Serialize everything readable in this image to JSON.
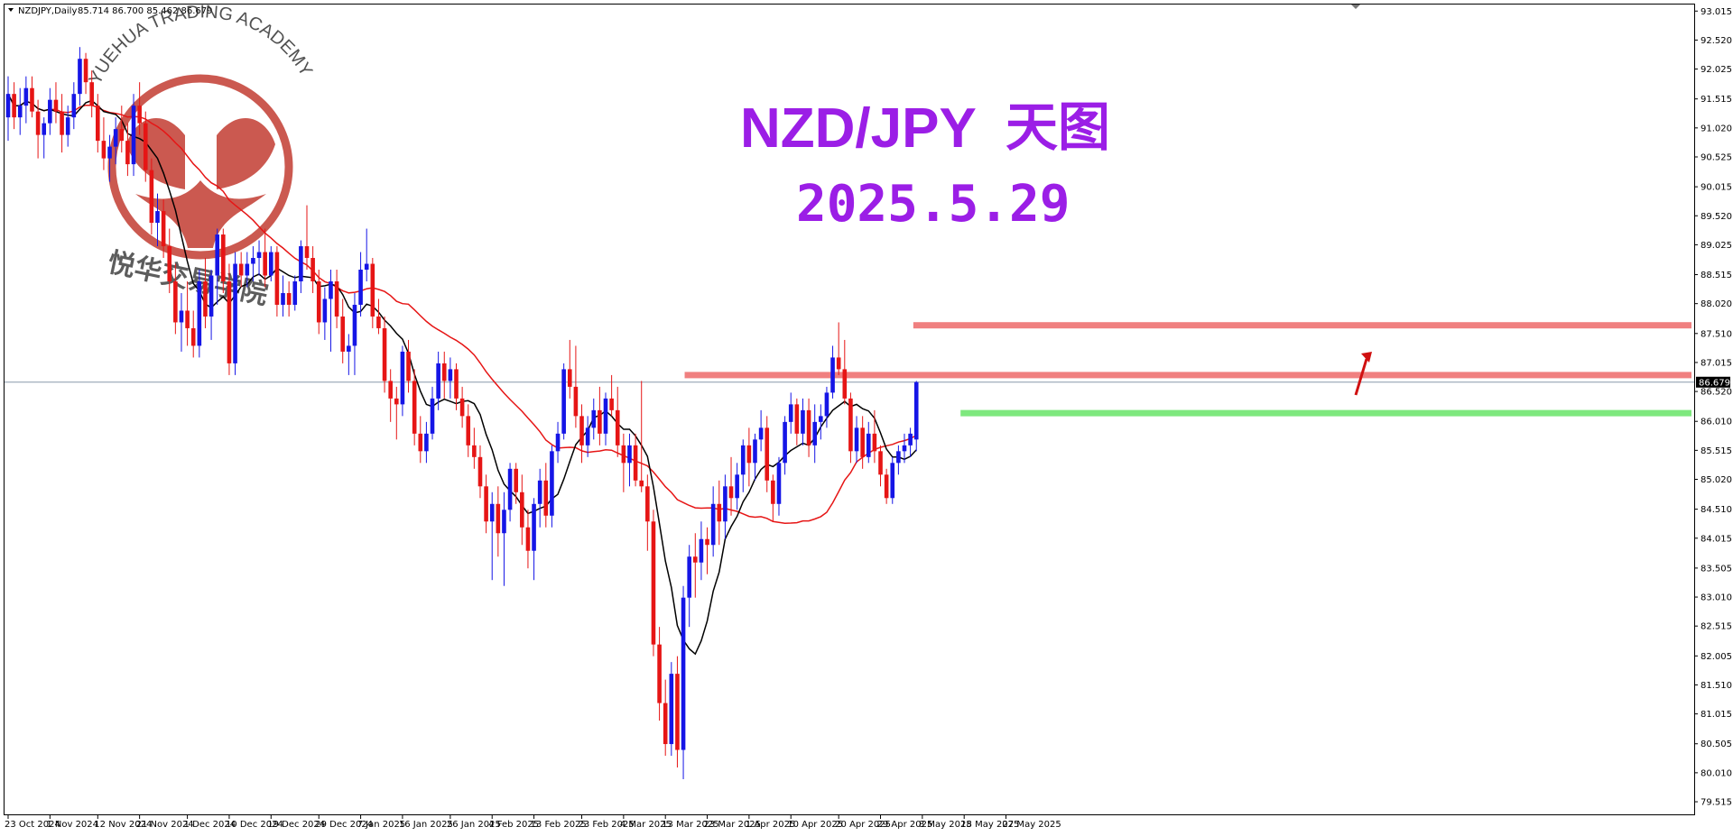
{
  "header": {
    "symbol_label": "NZDJPY,Daily",
    "ohlc_label": "85.714 86.700 85.462 86.679"
  },
  "title": {
    "line1": "NZD/JPY",
    "line1_cn": "天图",
    "line2": "2025.5.29"
  },
  "watermark": {
    "english": "YUEHUA TRADING ACADEMY",
    "chinese": "悦华交易学院"
  },
  "chart_data": {
    "type": "candlestick",
    "y_ticks": [
      "93.015",
      "92.520",
      "92.025",
      "91.515",
      "91.020",
      "90.525",
      "90.015",
      "89.520",
      "89.025",
      "88.515",
      "88.020",
      "87.510",
      "87.015",
      "86.520",
      "86.010",
      "85.515",
      "85.020",
      "84.510",
      "84.015",
      "83.505",
      "83.010",
      "82.515",
      "82.005",
      "81.510",
      "81.015",
      "80.505",
      "80.010",
      "79.515"
    ],
    "ylim": [
      79.5,
      93.05
    ],
    "x_labels": [
      "23 Oct 2024",
      "1 Nov 2024",
      "12 Nov 2024",
      "21 Nov 2024",
      "1 Dec 2024",
      "10 Dec 2024",
      "19 Dec 2024",
      "29 Dec 2024",
      "7 Jan 2025",
      "16 Jan 2025",
      "26 Jan 2025",
      "4 Feb 2025",
      "13 Feb 2025",
      "23 Feb 2025",
      "4 Mar 2025",
      "13 Mar 2025",
      "23 Mar 2025",
      "1 Apr 2025",
      "10 Apr 2025",
      "20 Apr 2025",
      "29 Apr 2025",
      "8 May 2025",
      "18 May 2025",
      "27 May 2025"
    ],
    "current_price": "86.679",
    "colors": {
      "bull": "#1515e6",
      "bear": "#e61515",
      "ma_fast": "#000000",
      "ma_slow": "#e61515",
      "resistance": "#f08080",
      "support": "#7ee87e",
      "arrow": "#d01010",
      "price_line": "#8899aa"
    },
    "levels": [
      {
        "kind": "resistance",
        "price": 87.65,
        "from": "8 May 2025"
      },
      {
        "kind": "resistance",
        "price": 86.8,
        "from": "23 Mar 2025"
      },
      {
        "kind": "support",
        "price": 86.15,
        "from": "18 May 2025"
      }
    ],
    "candles": [
      [
        91.2,
        91.9,
        90.8,
        91.6
      ],
      [
        91.6,
        91.8,
        91.0,
        91.2
      ],
      [
        91.2,
        91.7,
        90.9,
        91.4
      ],
      [
        91.4,
        91.9,
        91.1,
        91.7
      ],
      [
        91.7,
        91.9,
        91.2,
        91.3
      ],
      [
        91.3,
        91.5,
        90.5,
        90.9
      ],
      [
        90.9,
        91.2,
        90.5,
        91.1
      ],
      [
        91.1,
        91.7,
        90.9,
        91.5
      ],
      [
        91.5,
        91.8,
        91.1,
        91.3
      ],
      [
        91.3,
        91.6,
        90.6,
        90.9
      ],
      [
        90.9,
        91.4,
        90.7,
        91.2
      ],
      [
        91.2,
        91.8,
        91.0,
        91.6
      ],
      [
        91.6,
        92.4,
        91.4,
        92.2
      ],
      [
        92.2,
        92.3,
        91.6,
        91.8
      ],
      [
        91.8,
        92.0,
        91.2,
        91.4
      ],
      [
        91.4,
        91.6,
        90.6,
        90.8
      ],
      [
        90.8,
        91.2,
        90.3,
        90.5
      ],
      [
        90.5,
        90.9,
        90.1,
        90.7
      ],
      [
        90.7,
        91.2,
        90.4,
        91.0
      ],
      [
        91.0,
        91.4,
        90.6,
        90.8
      ],
      [
        90.8,
        91.1,
        90.2,
        90.4
      ],
      [
        90.4,
        91.6,
        90.2,
        91.4
      ],
      [
        91.4,
        91.8,
        90.9,
        91.1
      ],
      [
        91.1,
        91.3,
        90.1,
        90.3
      ],
      [
        90.3,
        90.5,
        89.2,
        89.4
      ],
      [
        89.4,
        89.9,
        89.0,
        89.6
      ],
      [
        89.6,
        89.8,
        88.8,
        89.0
      ],
      [
        89.0,
        89.3,
        88.2,
        88.4
      ],
      [
        88.4,
        88.7,
        87.5,
        87.7
      ],
      [
        87.7,
        88.2,
        87.2,
        87.9
      ],
      [
        87.9,
        88.4,
        87.3,
        87.6
      ],
      [
        87.6,
        87.9,
        87.1,
        87.3
      ],
      [
        87.3,
        88.6,
        87.1,
        88.4
      ],
      [
        88.4,
        88.8,
        87.6,
        87.8
      ],
      [
        87.8,
        88.6,
        87.4,
        88.5
      ],
      [
        88.5,
        89.3,
        88.0,
        89.2
      ],
      [
        89.2,
        89.3,
        88.2,
        88.4
      ],
      [
        88.4,
        88.7,
        86.8,
        87.0
      ],
      [
        87.0,
        88.9,
        86.8,
        88.7
      ],
      [
        88.7,
        88.9,
        88.3,
        88.5
      ],
      [
        88.5,
        88.9,
        88.3,
        88.7
      ],
      [
        88.7,
        89.0,
        88.4,
        88.8
      ],
      [
        88.8,
        89.1,
        88.5,
        88.9
      ],
      [
        88.9,
        89.3,
        88.3,
        88.5
      ],
      [
        88.5,
        89.0,
        88.4,
        88.9
      ],
      [
        88.9,
        89.0,
        87.8,
        88.0
      ],
      [
        88.0,
        88.5,
        87.8,
        88.2
      ],
      [
        88.2,
        88.4,
        87.8,
        88.0
      ],
      [
        88.0,
        88.5,
        87.9,
        88.4
      ],
      [
        88.4,
        89.1,
        88.2,
        89.0
      ],
      [
        89.0,
        89.7,
        88.6,
        88.8
      ],
      [
        88.8,
        89.0,
        88.2,
        88.4
      ],
      [
        88.4,
        88.6,
        87.5,
        87.7
      ],
      [
        87.7,
        88.3,
        87.4,
        88.1
      ],
      [
        88.1,
        88.6,
        87.2,
        88.4
      ],
      [
        88.4,
        88.6,
        87.6,
        87.8
      ],
      [
        87.8,
        88.1,
        87.0,
        87.2
      ],
      [
        87.2,
        87.5,
        86.8,
        87.3
      ],
      [
        87.3,
        88.2,
        86.8,
        88.0
      ],
      [
        88.0,
        88.9,
        87.8,
        88.6
      ],
      [
        88.6,
        89.3,
        88.4,
        88.7
      ],
      [
        88.7,
        88.8,
        87.6,
        87.8
      ],
      [
        87.8,
        88.1,
        87.5,
        87.6
      ],
      [
        87.6,
        87.8,
        86.5,
        86.7
      ],
      [
        86.7,
        86.9,
        86.0,
        86.4
      ],
      [
        86.4,
        86.6,
        85.7,
        86.3
      ],
      [
        86.3,
        87.3,
        86.1,
        87.2
      ],
      [
        87.2,
        87.4,
        86.5,
        86.7
      ],
      [
        86.7,
        86.9,
        85.6,
        85.8
      ],
      [
        85.8,
        86.1,
        85.3,
        85.5
      ],
      [
        85.5,
        86.0,
        85.3,
        85.8
      ],
      [
        85.8,
        86.6,
        85.7,
        86.4
      ],
      [
        86.4,
        87.2,
        86.2,
        87.0
      ],
      [
        87.0,
        87.2,
        86.4,
        86.7
      ],
      [
        86.7,
        87.1,
        86.4,
        86.9
      ],
      [
        86.9,
        87.0,
        86.2,
        86.4
      ],
      [
        86.4,
        86.6,
        85.9,
        86.1
      ],
      [
        86.1,
        86.3,
        85.4,
        85.6
      ],
      [
        85.6,
        85.9,
        85.2,
        85.4
      ],
      [
        85.4,
        85.6,
        84.7,
        84.9
      ],
      [
        84.9,
        85.1,
        84.1,
        84.3
      ],
      [
        84.3,
        84.8,
        83.3,
        84.6
      ],
      [
        84.6,
        84.9,
        83.7,
        84.1
      ],
      [
        84.1,
        84.8,
        83.2,
        84.5
      ],
      [
        84.5,
        85.3,
        84.3,
        85.2
      ],
      [
        85.2,
        85.3,
        84.6,
        84.8
      ],
      [
        84.8,
        85.1,
        83.9,
        84.2
      ],
      [
        84.2,
        84.5,
        83.5,
        83.8
      ],
      [
        83.8,
        84.7,
        83.3,
        84.6
      ],
      [
        84.6,
        85.2,
        84.2,
        85.0
      ],
      [
        85.0,
        85.3,
        84.2,
        84.4
      ],
      [
        84.4,
        85.6,
        84.2,
        85.5
      ],
      [
        85.5,
        86.0,
        85.3,
        85.8
      ],
      [
        85.8,
        87.0,
        85.7,
        86.9
      ],
      [
        86.9,
        87.4,
        86.4,
        86.6
      ],
      [
        86.6,
        87.3,
        85.9,
        86.1
      ],
      [
        86.1,
        86.3,
        85.3,
        85.6
      ],
      [
        85.6,
        86.1,
        85.4,
        85.9
      ],
      [
        85.9,
        86.4,
        85.7,
        86.2
      ],
      [
        86.2,
        86.6,
        85.6,
        85.8
      ],
      [
        85.8,
        86.5,
        85.6,
        86.4
      ],
      [
        86.4,
        86.8,
        86.1,
        86.2
      ],
      [
        86.2,
        86.6,
        85.4,
        85.6
      ],
      [
        85.6,
        85.8,
        84.8,
        85.3
      ],
      [
        85.3,
        85.8,
        84.9,
        85.6
      ],
      [
        85.6,
        85.8,
        84.9,
        85.0
      ],
      [
        85.0,
        86.7,
        84.8,
        84.9
      ],
      [
        84.9,
        85.1,
        83.8,
        84.3
      ],
      [
        84.3,
        84.5,
        82.0,
        82.2
      ],
      [
        82.2,
        82.5,
        80.9,
        81.2
      ],
      [
        81.2,
        81.6,
        80.3,
        80.5
      ],
      [
        80.5,
        81.9,
        80.3,
        81.7
      ],
      [
        81.7,
        82.0,
        80.1,
        80.4
      ],
      [
        80.4,
        83.2,
        79.9,
        83.0
      ],
      [
        83.0,
        83.9,
        82.5,
        83.7
      ],
      [
        83.7,
        84.1,
        83.0,
        83.6
      ],
      [
        83.6,
        84.3,
        83.3,
        84.0
      ],
      [
        84.0,
        84.2,
        83.4,
        83.9
      ],
      [
        83.9,
        84.9,
        83.7,
        84.6
      ],
      [
        84.6,
        85.0,
        83.9,
        84.3
      ],
      [
        84.3,
        85.1,
        84.0,
        84.9
      ],
      [
        84.9,
        85.4,
        84.4,
        84.7
      ],
      [
        84.7,
        85.3,
        84.5,
        85.1
      ],
      [
        85.1,
        85.7,
        84.8,
        85.6
      ],
      [
        85.6,
        85.9,
        84.9,
        85.3
      ],
      [
        85.3,
        85.8,
        85.0,
        85.7
      ],
      [
        85.7,
        86.2,
        85.5,
        85.9
      ],
      [
        85.9,
        86.1,
        84.8,
        85.0
      ],
      [
        85.0,
        85.1,
        84.3,
        84.6
      ],
      [
        84.6,
        85.4,
        84.4,
        85.3
      ],
      [
        85.3,
        86.1,
        85.1,
        86.0
      ],
      [
        86.0,
        86.5,
        85.8,
        86.3
      ],
      [
        86.3,
        86.4,
        85.6,
        85.8
      ],
      [
        85.8,
        86.4,
        85.6,
        86.2
      ],
      [
        86.2,
        86.4,
        85.4,
        85.6
      ],
      [
        85.6,
        86.3,
        85.3,
        86.0
      ],
      [
        86.0,
        86.3,
        85.7,
        86.1
      ],
      [
        86.1,
        86.6,
        85.9,
        86.5
      ],
      [
        86.5,
        87.3,
        86.4,
        87.1
      ],
      [
        87.1,
        87.7,
        86.8,
        86.9
      ],
      [
        86.9,
        87.4,
        86.3,
        86.4
      ],
      [
        86.4,
        86.5,
        85.3,
        85.5
      ],
      [
        85.5,
        86.1,
        85.3,
        85.9
      ],
      [
        85.9,
        86.1,
        85.2,
        85.4
      ],
      [
        85.4,
        86.0,
        85.3,
        85.8
      ],
      [
        85.8,
        86.2,
        85.3,
        85.5
      ],
      [
        85.5,
        85.6,
        84.9,
        85.1
      ],
      [
        85.1,
        85.2,
        84.6,
        84.7
      ],
      [
        84.7,
        85.4,
        84.6,
        85.3
      ],
      [
        85.3,
        85.6,
        85.1,
        85.5
      ],
      [
        85.5,
        85.8,
        85.3,
        85.6
      ],
      [
        85.6,
        85.9,
        85.4,
        85.8
      ],
      [
        85.7,
        86.7,
        85.5,
        86.68
      ]
    ]
  }
}
